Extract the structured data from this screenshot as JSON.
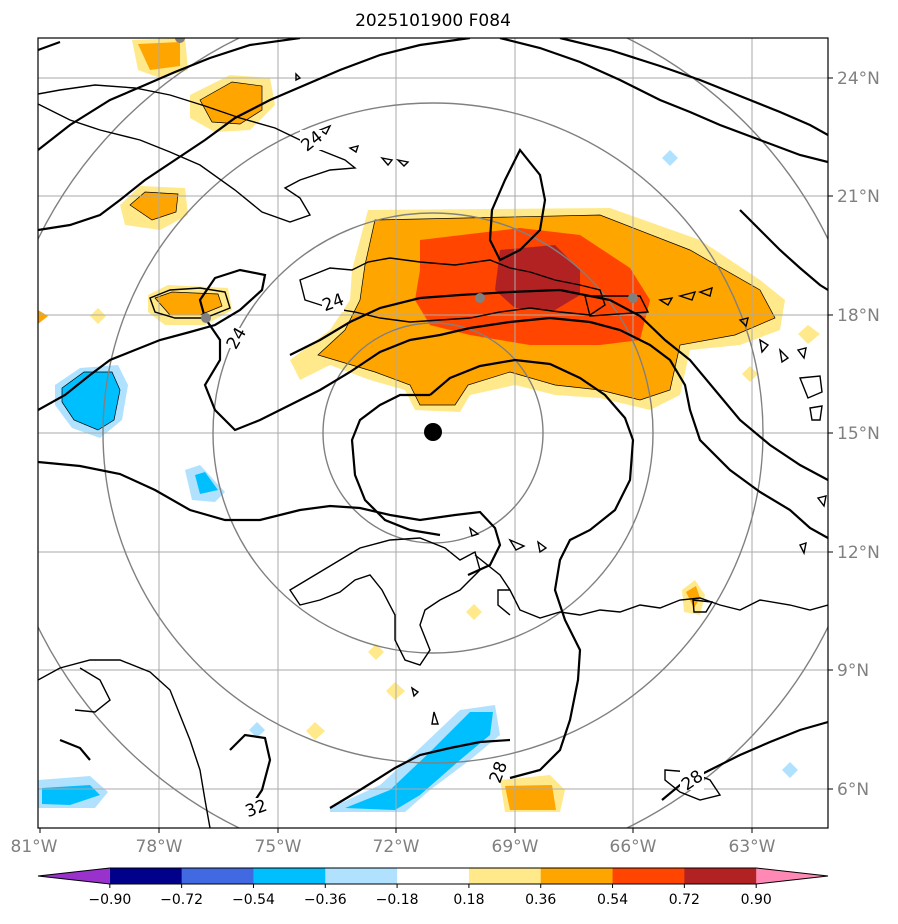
{
  "title": "2025101900 F084",
  "lon_labels": [
    "81°W",
    "78°W",
    "75°W",
    "72°W",
    "69°W",
    "66°W",
    "63°W"
  ],
  "lat_labels": [
    "24°N",
    "21°N",
    "18°N",
    "15°N",
    "12°N",
    "9°N",
    "6°N"
  ],
  "colorbar": {
    "tick_labels": [
      "−0.90",
      "−0.72",
      "−0.54",
      "−0.36",
      "−0.18",
      "0.18",
      "0.36",
      "0.54",
      "0.72",
      "0.90"
    ],
    "colors": [
      "#9932cc",
      "#00008b",
      "#4169e1",
      "#00bfff",
      "#b0e2ff",
      "#ffffff",
      "#ffe98a",
      "#ffa500",
      "#ff4500",
      "#b22222",
      "#ff88b4"
    ]
  },
  "contour_labels": [
    "24",
    "24",
    "24",
    "32",
    "28",
    "28"
  ],
  "storm_center": {
    "lon": -71.0,
    "lat": 15.0
  },
  "line_colors": {
    "coast": "#000000",
    "grid": "#aaaaaa",
    "rings": "#808080"
  }
}
